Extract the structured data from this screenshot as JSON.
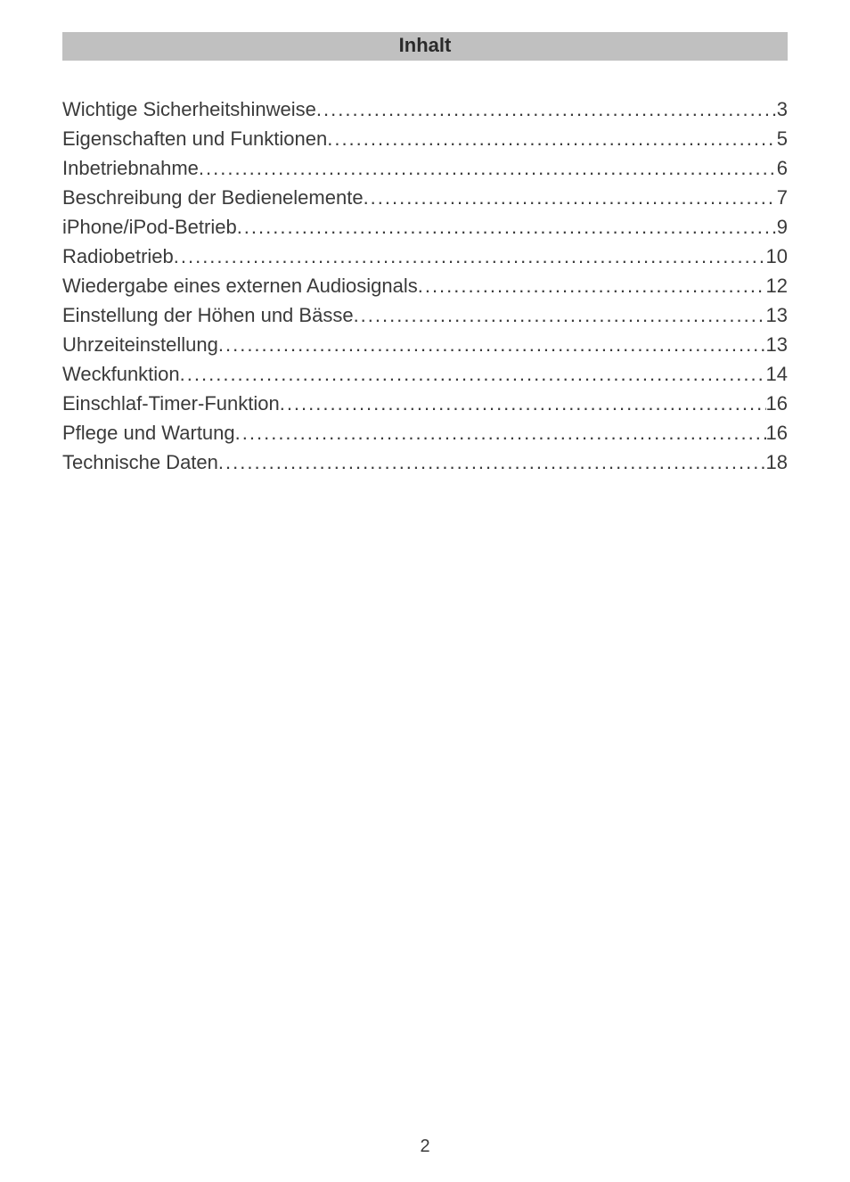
{
  "title": "Inhalt",
  "page_number": "2",
  "colors": {
    "title_bar_bg": "#c0c0c0",
    "text": "#3a3a3a",
    "page_bg": "#ffffff"
  },
  "typography": {
    "title_fontsize_pt": 16,
    "title_fontweight": "bold",
    "body_fontsize_pt": 16,
    "font_family": "Arial"
  },
  "toc": [
    {
      "label": "Wichtige Sicherheitshinweise",
      "page": "3"
    },
    {
      "label": "Eigenschaften und Funktionen",
      "page": "5"
    },
    {
      "label": "Inbetriebnahme",
      "page": "6"
    },
    {
      "label": "Beschreibung der Bedienelemente",
      "page": "7"
    },
    {
      "label": "iPhone/iPod-Betrieb",
      "page": "9"
    },
    {
      "label": "Radiobetrieb",
      "page": "10"
    },
    {
      "label": "Wiedergabe eines externen Audiosignals",
      "page": "12"
    },
    {
      "label": "Einstellung der Höhen und Bässe",
      "page": "13"
    },
    {
      "label": "Uhrzeiteinstellung ",
      "page": "13"
    },
    {
      "label": "Weckfunktion",
      "page": "14"
    },
    {
      "label": "Einschlaf-Timer-Funktion",
      "page": "16"
    },
    {
      "label": "Pflege und Wartung",
      "page": "16"
    },
    {
      "label": "Technische Daten",
      "page": "18"
    }
  ]
}
